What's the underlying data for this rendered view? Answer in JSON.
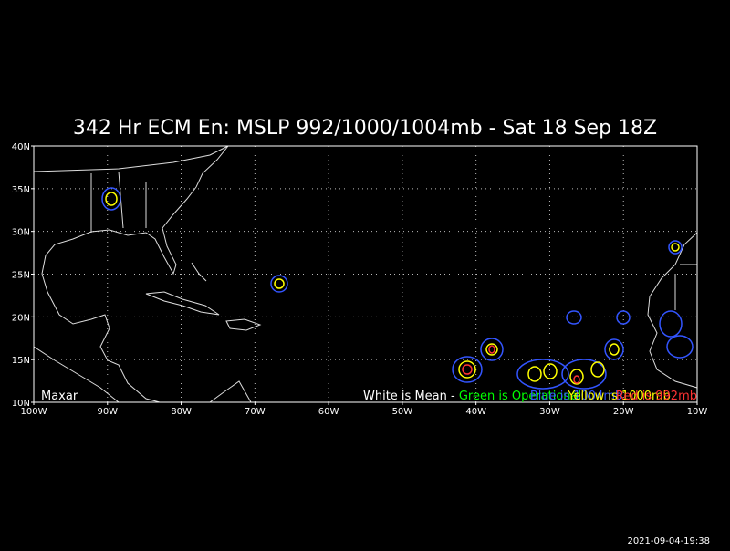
{
  "header": {
    "title": "342 Hr ECM En: MSLP 992/1000/1004mb - Sat 18 Sep 18Z"
  },
  "map": {
    "x_labels": [
      "100W",
      "90W",
      "80W",
      "70W",
      "60W",
      "50W",
      "40W",
      "30W",
      "20W",
      "10W"
    ],
    "y_labels": [
      "40N",
      "35N",
      "30N",
      "25N",
      "20N",
      "15N",
      "10N"
    ],
    "credit": "Maxar",
    "legend": [
      {
        "text": "White is Mean - ",
        "color": "#ffffff"
      },
      {
        "text": "Green is Operational",
        "color": "#00ff00"
      }
    ],
    "legend_overlay": [
      {
        "text": "Blue is 1004mb",
        "color": "#3355ff"
      },
      {
        "text": "Yellow is 1000mb",
        "color": "#ffff00"
      },
      {
        "text": "Red is 992mb",
        "color": "#ff3333"
      }
    ]
  },
  "footer": {
    "timestamp": "2021-09-04-19:38"
  }
}
